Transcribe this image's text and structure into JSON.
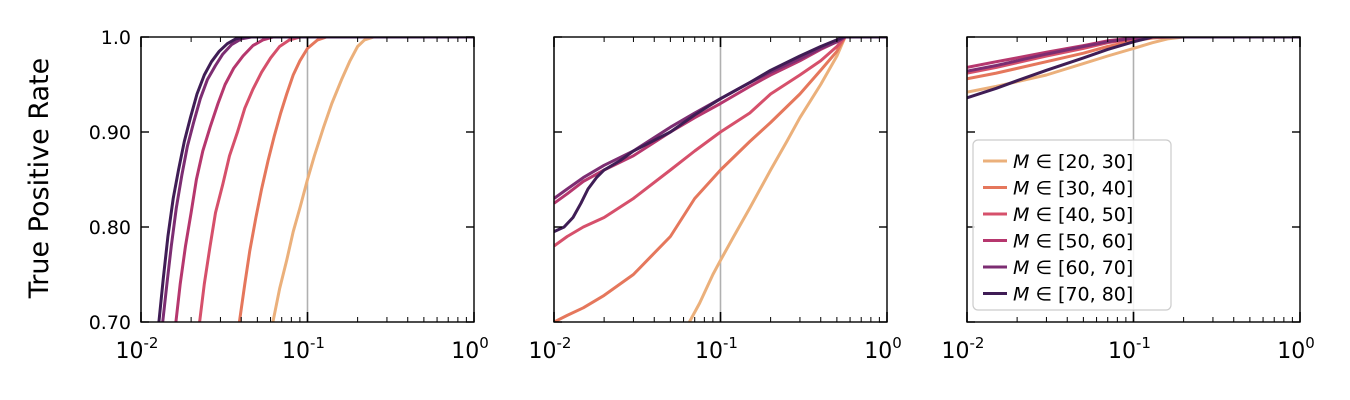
{
  "ylabel": "True Positive Rate",
  "chart_data": [
    {
      "type": "line",
      "xscale": "log",
      "xlim": [
        0.01,
        1
      ],
      "ylim": [
        0.7,
        1.0
      ],
      "x_ticks": [
        {
          "base": "10",
          "exp": "-2",
          "value": 0.01
        },
        {
          "base": "10",
          "exp": "-1",
          "value": 0.1
        },
        {
          "base": "10",
          "exp": "0",
          "value": 1
        }
      ],
      "y_ticks": [
        {
          "label": "1.0",
          "value": 1.0
        },
        {
          "label": "0.90",
          "value": 0.9
        },
        {
          "label": "0.80",
          "value": 0.8
        },
        {
          "label": "0.70",
          "value": 0.7
        }
      ],
      "vgrid": [
        0.01,
        0.1
      ],
      "series": [
        {
          "name": "M ∈ [20, 30]",
          "color": "#ebb07b",
          "x": [
            0.062,
            0.068,
            0.075,
            0.082,
            0.09,
            0.1,
            0.11,
            0.125,
            0.14,
            0.16,
            0.18,
            0.2,
            0.22,
            0.25,
            0.3,
            1.0
          ],
          "y": [
            0.7,
            0.735,
            0.765,
            0.795,
            0.82,
            0.85,
            0.875,
            0.905,
            0.93,
            0.955,
            0.975,
            0.99,
            0.997,
            1.0,
            1.0,
            1.0
          ]
        },
        {
          "name": "M ∈ [30, 40]",
          "color": "#e5775c",
          "x": [
            0.039,
            0.042,
            0.045,
            0.049,
            0.053,
            0.058,
            0.063,
            0.069,
            0.075,
            0.082,
            0.09,
            0.1,
            0.115,
            0.13,
            0.15,
            1.0
          ],
          "y": [
            0.7,
            0.74,
            0.775,
            0.81,
            0.84,
            0.87,
            0.895,
            0.92,
            0.94,
            0.96,
            0.975,
            0.988,
            0.997,
            1.0,
            1.0,
            1.0
          ]
        },
        {
          "name": "M ∈ [40, 50]",
          "color": "#d6506b",
          "x": [
            0.0225,
            0.024,
            0.026,
            0.028,
            0.031,
            0.034,
            0.038,
            0.042,
            0.047,
            0.053,
            0.06,
            0.068,
            0.078,
            0.09,
            0.1,
            1.0
          ],
          "y": [
            0.7,
            0.74,
            0.78,
            0.815,
            0.845,
            0.875,
            0.9,
            0.925,
            0.945,
            0.963,
            0.978,
            0.99,
            0.997,
            1.0,
            1.0,
            1.0
          ]
        },
        {
          "name": "M ∈ [50, 60]",
          "color": "#b6376e",
          "x": [
            0.0162,
            0.0172,
            0.0185,
            0.02,
            0.0215,
            0.0235,
            0.026,
            0.029,
            0.032,
            0.036,
            0.041,
            0.047,
            0.054,
            0.062,
            0.07,
            1.0
          ],
          "y": [
            0.7,
            0.74,
            0.78,
            0.815,
            0.85,
            0.88,
            0.905,
            0.93,
            0.95,
            0.967,
            0.98,
            0.991,
            0.997,
            1.0,
            1.0,
            1.0
          ]
        },
        {
          "name": "M ∈ [60, 70]",
          "color": "#7c2d72",
          "x": [
            0.0135,
            0.0143,
            0.0152,
            0.0163,
            0.0176,
            0.019,
            0.0207,
            0.0227,
            0.025,
            0.028,
            0.031,
            0.035,
            0.04,
            0.046,
            0.055,
            1.0
          ],
          "y": [
            0.7,
            0.74,
            0.78,
            0.82,
            0.855,
            0.885,
            0.91,
            0.935,
            0.955,
            0.97,
            0.982,
            0.992,
            0.998,
            1.0,
            1.0,
            1.0
          ]
        },
        {
          "name": "M ∈ [70, 80]",
          "color": "#3f1d55",
          "x": [
            0.0128,
            0.0136,
            0.0145,
            0.0156,
            0.0168,
            0.0182,
            0.0198,
            0.0217,
            0.024,
            0.0265,
            0.0295,
            0.033,
            0.037,
            0.042,
            0.05,
            1.0
          ],
          "y": [
            0.7,
            0.745,
            0.79,
            0.83,
            0.86,
            0.89,
            0.915,
            0.94,
            0.96,
            0.974,
            0.985,
            0.993,
            0.998,
            1.0,
            1.0,
            1.0
          ]
        }
      ]
    },
    {
      "type": "line",
      "xscale": "log",
      "xlim": [
        0.01,
        1
      ],
      "ylim": [
        0.7,
        1.0
      ],
      "x_ticks": [
        {
          "base": "10",
          "exp": "-2",
          "value": 0.01
        },
        {
          "base": "10",
          "exp": "-1",
          "value": 0.1
        },
        {
          "base": "10",
          "exp": "0",
          "value": 1
        }
      ],
      "y_ticks": [
        {
          "label": "",
          "value": 1.0
        },
        {
          "label": "",
          "value": 0.9
        },
        {
          "label": "",
          "value": 0.8
        },
        {
          "label": "",
          "value": 0.7
        }
      ],
      "vgrid": [
        0.01,
        0.1
      ],
      "series": [
        {
          "name": "M ∈ [20, 30]",
          "color": "#ebb07b",
          "x": [
            0.065,
            0.075,
            0.09,
            0.1,
            0.12,
            0.15,
            0.2,
            0.25,
            0.3,
            0.4,
            0.5,
            0.56,
            1.0
          ],
          "y": [
            0.7,
            0.72,
            0.75,
            0.765,
            0.79,
            0.82,
            0.86,
            0.89,
            0.915,
            0.95,
            0.98,
            1.0,
            1.0
          ]
        },
        {
          "name": "M ∈ [30, 40]",
          "color": "#e5775c",
          "x": [
            0.01,
            0.012,
            0.015,
            0.02,
            0.03,
            0.05,
            0.07,
            0.1,
            0.15,
            0.2,
            0.3,
            0.4,
            0.5,
            0.56,
            1.0
          ],
          "y": [
            0.7,
            0.707,
            0.715,
            0.728,
            0.75,
            0.79,
            0.83,
            0.86,
            0.89,
            0.91,
            0.94,
            0.965,
            0.985,
            1.0,
            1.0
          ]
        },
        {
          "name": "M ∈ [40, 50]",
          "color": "#d6506b",
          "x": [
            0.01,
            0.012,
            0.015,
            0.02,
            0.03,
            0.05,
            0.07,
            0.1,
            0.15,
            0.2,
            0.3,
            0.4,
            0.5,
            0.56,
            1.0
          ],
          "y": [
            0.78,
            0.79,
            0.8,
            0.81,
            0.83,
            0.86,
            0.88,
            0.9,
            0.92,
            0.94,
            0.96,
            0.975,
            0.99,
            1.0,
            1.0
          ]
        },
        {
          "name": "M ∈ [50, 60]",
          "color": "#b6376e",
          "x": [
            0.01,
            0.012,
            0.015,
            0.02,
            0.03,
            0.05,
            0.07,
            0.1,
            0.15,
            0.2,
            0.3,
            0.4,
            0.5,
            0.56,
            1.0
          ],
          "y": [
            0.825,
            0.835,
            0.848,
            0.86,
            0.875,
            0.9,
            0.915,
            0.93,
            0.948,
            0.96,
            0.975,
            0.987,
            0.995,
            1.0,
            1.0
          ]
        },
        {
          "name": "M ∈ [60, 70]",
          "color": "#7c2d72",
          "x": [
            0.01,
            0.012,
            0.015,
            0.02,
            0.03,
            0.05,
            0.07,
            0.1,
            0.15,
            0.2,
            0.3,
            0.4,
            0.5,
            0.56,
            1.0
          ],
          "y": [
            0.83,
            0.84,
            0.852,
            0.865,
            0.88,
            0.905,
            0.92,
            0.935,
            0.952,
            0.963,
            0.977,
            0.988,
            0.995,
            1.0,
            1.0
          ]
        },
        {
          "name": "M ∈ [70, 80]",
          "color": "#3f1d55",
          "x": [
            0.01,
            0.0115,
            0.013,
            0.0145,
            0.016,
            0.018,
            0.02,
            0.025,
            0.03,
            0.05,
            0.07,
            0.1,
            0.15,
            0.2,
            0.3,
            0.4,
            0.55,
            1.0
          ],
          "y": [
            0.795,
            0.8,
            0.81,
            0.825,
            0.84,
            0.852,
            0.86,
            0.87,
            0.88,
            0.9,
            0.918,
            0.935,
            0.952,
            0.965,
            0.98,
            0.99,
            1.0,
            1.0
          ]
        }
      ]
    },
    {
      "type": "line",
      "xscale": "log",
      "xlim": [
        0.01,
        1
      ],
      "ylim": [
        0.7,
        1.0
      ],
      "x_ticks": [
        {
          "base": "10",
          "exp": "-2",
          "value": 0.01
        },
        {
          "base": "10",
          "exp": "-1",
          "value": 0.1
        },
        {
          "base": "10",
          "exp": "0",
          "value": 1
        }
      ],
      "y_ticks": [
        {
          "label": "",
          "value": 1.0
        },
        {
          "label": "",
          "value": 0.9
        },
        {
          "label": "",
          "value": 0.8
        },
        {
          "label": "",
          "value": 0.7
        }
      ],
      "vgrid": [
        0.01,
        0.1
      ],
      "legend": "center-left",
      "series": [
        {
          "name": "M ∈ [20, 30]",
          "color": "#ebb07b",
          "x": [
            0.01,
            0.015,
            0.02,
            0.03,
            0.05,
            0.07,
            0.1,
            0.13,
            0.16,
            0.2,
            1.0
          ],
          "y": [
            0.942,
            0.948,
            0.953,
            0.96,
            0.972,
            0.98,
            0.988,
            0.994,
            0.998,
            1.0,
            1.0
          ]
        },
        {
          "name": "M ∈ [30, 40]",
          "color": "#e5775c",
          "x": [
            0.01,
            0.015,
            0.02,
            0.03,
            0.05,
            0.07,
            0.1,
            0.13,
            0.17,
            1.0
          ],
          "y": [
            0.956,
            0.962,
            0.967,
            0.974,
            0.983,
            0.99,
            0.996,
            0.999,
            1.0,
            1.0
          ]
        },
        {
          "name": "M ∈ [40, 50]",
          "color": "#d6506b",
          "x": [
            0.01,
            0.015,
            0.02,
            0.03,
            0.05,
            0.07,
            0.1,
            0.13,
            1.0
          ],
          "y": [
            0.962,
            0.968,
            0.973,
            0.98,
            0.988,
            0.994,
            0.998,
            1.0,
            1.0
          ]
        },
        {
          "name": "M ∈ [50, 60]",
          "color": "#b6376e",
          "x": [
            0.01,
            0.015,
            0.02,
            0.03,
            0.05,
            0.07,
            0.1,
            0.12,
            1.0
          ],
          "y": [
            0.968,
            0.974,
            0.978,
            0.984,
            0.991,
            0.996,
            0.999,
            1.0,
            1.0
          ]
        },
        {
          "name": "M ∈ [60, 70]",
          "color": "#7c2d72",
          "x": [
            0.01,
            0.015,
            0.02,
            0.03,
            0.05,
            0.07,
            0.1,
            0.12,
            1.0
          ],
          "y": [
            0.964,
            0.97,
            0.975,
            0.982,
            0.99,
            0.995,
            0.999,
            1.0,
            1.0
          ]
        },
        {
          "name": "M ∈ [70, 80]",
          "color": "#3f1d55",
          "x": [
            0.01,
            0.015,
            0.02,
            0.03,
            0.05,
            0.07,
            0.1,
            0.13,
            1.0
          ],
          "y": [
            0.936,
            0.946,
            0.954,
            0.965,
            0.978,
            0.987,
            0.995,
            1.0,
            1.0
          ]
        }
      ]
    }
  ]
}
